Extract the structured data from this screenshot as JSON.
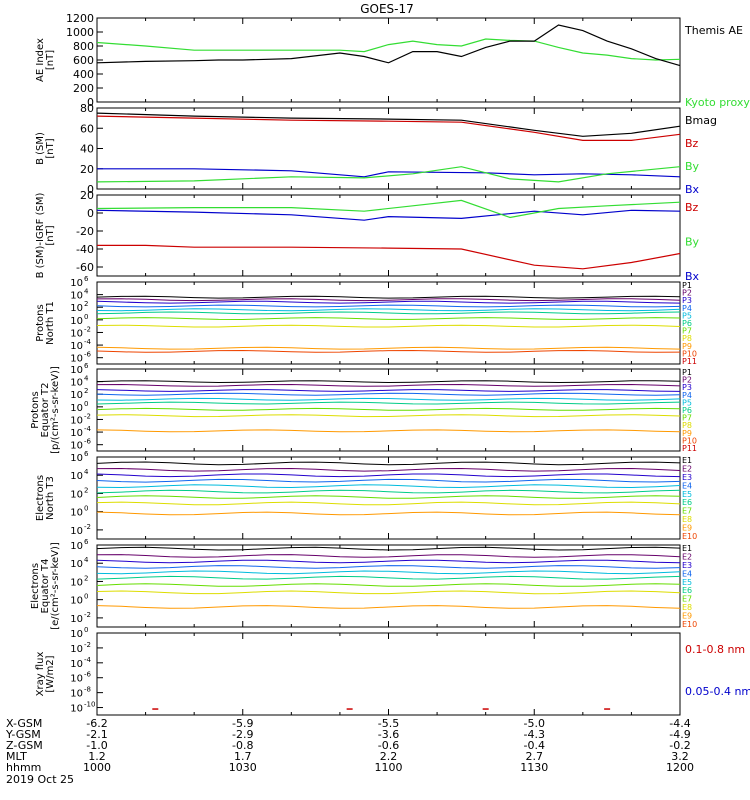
{
  "title": "GOES-17",
  "colors": {
    "black": "#000000",
    "green": "#33dd33",
    "blue": "#0000cc",
    "red": "#cc0000",
    "p": [
      "#000000",
      "#66006a",
      "#2200cc",
      "#1166ee",
      "#00bbdd",
      "#00cc88",
      "#66dd00",
      "#dddd00",
      "#ff9900",
      "#ee4400",
      "#cc0000"
    ]
  },
  "x_axis": {
    "rows": [
      {
        "label": "X-GSM",
        "values": [
          "-6.2",
          "-5.9",
          "-5.5",
          "-5.0",
          "-4.4"
        ]
      },
      {
        "label": "Y-GSM",
        "values": [
          "-2.1",
          "-2.9",
          "-3.6",
          "-4.3",
          "-4.9"
        ]
      },
      {
        "label": "Z-GSM",
        "values": [
          "-1.0",
          "-0.8",
          "-0.6",
          "-0.4",
          "-0.2"
        ]
      },
      {
        "label": "MLT",
        "values": [
          "1.2",
          "1.7",
          "2.2",
          "2.7",
          "3.2"
        ]
      },
      {
        "label": "hhmm",
        "values": [
          "1000",
          "1030",
          "1100",
          "1130",
          "1200"
        ]
      }
    ],
    "date": "2019 Oct 25",
    "range_minutes": [
      0,
      120
    ]
  },
  "chart_data": [
    {
      "type": "line",
      "ylabel": [
        "AE Index",
        "[nT]"
      ],
      "ylim": [
        0,
        1200
      ],
      "yticks": [
        "0",
        "200",
        "400",
        "600",
        "800",
        "1000",
        "1200"
      ],
      "series": [
        {
          "name": "Kyoto proxy AE",
          "color": "green",
          "x": [
            0,
            10,
            20,
            30,
            40,
            50,
            55,
            60,
            65,
            70,
            75,
            80,
            85,
            90,
            95,
            100,
            105,
            110,
            115,
            120
          ],
          "y": [
            850,
            800,
            740,
            740,
            740,
            740,
            720,
            820,
            870,
            820,
            800,
            900,
            880,
            870,
            780,
            700,
            670,
            620,
            600,
            610
          ]
        },
        {
          "name": "Themis AE",
          "color": "black",
          "x": [
            0,
            10,
            20,
            25,
            30,
            40,
            50,
            55,
            60,
            65,
            70,
            75,
            80,
            85,
            90,
            95,
            100,
            105,
            110,
            115,
            120
          ],
          "y": [
            560,
            580,
            590,
            600,
            600,
            620,
            700,
            650,
            560,
            720,
            720,
            650,
            780,
            870,
            870,
            1100,
            1020,
            870,
            760,
            620,
            520
          ]
        }
      ]
    },
    {
      "type": "line",
      "ylabel": [
        "B (SM)",
        "[nT]"
      ],
      "ylim": [
        0,
        80
      ],
      "yticks": [
        "0",
        "20",
        "40",
        "60",
        "80"
      ],
      "series": [
        {
          "name": "Bx",
          "color": "blue",
          "x": [
            0,
            20,
            40,
            55,
            60,
            80,
            90,
            100,
            110,
            120
          ],
          "y": [
            20,
            20,
            18,
            12,
            17,
            16,
            14,
            15,
            14,
            12
          ]
        },
        {
          "name": "By",
          "color": "green",
          "x": [
            0,
            20,
            40,
            55,
            65,
            75,
            85,
            95,
            105,
            120
          ],
          "y": [
            7,
            8,
            12,
            11,
            15,
            22,
            10,
            7,
            15,
            22
          ]
        },
        {
          "name": "Bz",
          "color": "red",
          "x": [
            0,
            20,
            40,
            60,
            75,
            90,
            100,
            110,
            120
          ],
          "y": [
            72,
            70,
            68,
            67,
            66,
            56,
            48,
            48,
            54
          ]
        },
        {
          "name": "Bmag",
          "color": "black",
          "x": [
            0,
            20,
            40,
            60,
            75,
            90,
            100,
            110,
            120
          ],
          "y": [
            75,
            72,
            70,
            69,
            68,
            58,
            52,
            55,
            62
          ]
        }
      ]
    },
    {
      "type": "line",
      "ylabel": [
        "B (SM)-IGRF (SM)",
        "[nT]"
      ],
      "ylim": [
        -70,
        20
      ],
      "yticks": [
        "-60",
        "-40",
        "-20",
        "0",
        "20"
      ],
      "series": [
        {
          "name": "Bx",
          "color": "blue",
          "x": [
            0,
            20,
            40,
            55,
            60,
            75,
            90,
            100,
            110,
            120
          ],
          "y": [
            3,
            1,
            -2,
            -8,
            -4,
            -6,
            2,
            -2,
            3,
            2
          ]
        },
        {
          "name": "By",
          "color": "green",
          "x": [
            0,
            20,
            40,
            55,
            65,
            75,
            85,
            95,
            105,
            120
          ],
          "y": [
            5,
            6,
            6,
            2,
            8,
            14,
            -5,
            5,
            8,
            12
          ]
        },
        {
          "name": "Bz",
          "color": "red",
          "x": [
            0,
            10,
            20,
            40,
            60,
            75,
            90,
            100,
            110,
            120
          ],
          "y": [
            -36,
            -36,
            -38,
            -38,
            -39,
            -40,
            -58,
            -62,
            -55,
            -45
          ]
        }
      ]
    },
    {
      "type": "line",
      "ylabel": [
        "Protons",
        "North T1"
      ],
      "log": true,
      "ylim_exp": [
        -7,
        6
      ],
      "ytick_exps": [
        -6,
        -4,
        -2,
        0,
        2,
        4,
        6
      ],
      "legend": [
        "P1",
        "P2",
        "P3",
        "P4",
        "P5",
        "P6",
        "P7",
        "P8",
        "P9",
        "P10",
        "P11"
      ],
      "series_exp": [
        {
          "name": "P1",
          "level": 3.6
        },
        {
          "name": "P2",
          "level": 3.2
        },
        {
          "name": "P3",
          "level": 2.8
        },
        {
          "name": "P4",
          "level": 2.2
        },
        {
          "name": "P5",
          "level": 1.6
        },
        {
          "name": "P6",
          "level": 1.1
        },
        {
          "name": "P7",
          "level": 0.2
        },
        {
          "name": "P8",
          "level": -1.0
        },
        {
          "name": "P9",
          "level": -4.5
        },
        {
          "name": "P10",
          "level": -5.0
        }
      ]
    },
    {
      "type": "line",
      "ylabel": [
        "Protons",
        "Equator T2",
        "[p/(cm²-s-sr-keV)]"
      ],
      "log": true,
      "ylim_exp": [
        -7,
        6
      ],
      "ytick_exps": [
        -6,
        -4,
        -2,
        0,
        2,
        4,
        6
      ],
      "legend": [
        "P1",
        "P2",
        "P3",
        "P4",
        "P5",
        "P6",
        "P7",
        "P8",
        "P9",
        "P10",
        "P11"
      ],
      "series_exp": [
        {
          "name": "P1",
          "level": 4.0
        },
        {
          "name": "P2",
          "level": 3.4
        },
        {
          "name": "P3",
          "level": 2.6
        },
        {
          "name": "P4",
          "level": 2.0
        },
        {
          "name": "P5",
          "level": 1.2
        },
        {
          "name": "P6",
          "level": 0.6
        },
        {
          "name": "P7",
          "level": -0.4
        },
        {
          "name": "P8",
          "level": -1.4
        },
        {
          "name": "P9",
          "level": -3.8
        }
      ]
    },
    {
      "type": "line",
      "ylabel": [
        "Electrons",
        "North T3"
      ],
      "log": true,
      "ylim_exp": [
        -3,
        6
      ],
      "ytick_exps": [
        -2,
        0,
        2,
        4,
        6
      ],
      "legend": [
        "E1",
        "E2",
        "E3",
        "E4",
        "E5",
        "E6",
        "E7",
        "E8",
        "E9",
        "E10"
      ],
      "series_exp": [
        {
          "name": "E1",
          "level": 5.3
        },
        {
          "name": "E2",
          "level": 4.6
        },
        {
          "name": "E3",
          "level": 4.0
        },
        {
          "name": "E4",
          "level": 3.4
        },
        {
          "name": "E5",
          "level": 2.8
        },
        {
          "name": "E6",
          "level": 2.2
        },
        {
          "name": "E7",
          "level": 1.6
        },
        {
          "name": "E8",
          "level": 0.9
        },
        {
          "name": "E9",
          "level": -0.2
        }
      ]
    },
    {
      "type": "line",
      "ylabel": [
        "Electrons",
        "Equator T4",
        "[e/(cm²-s-sr-keV)]"
      ],
      "log": true,
      "ylim_exp": [
        -3,
        6
      ],
      "ytick_exps": [
        -2,
        0,
        2,
        4,
        6
      ],
      "legend": [
        "E1",
        "E2",
        "E3",
        "E4",
        "E5",
        "E6",
        "E7",
        "E8",
        "E9",
        "E10"
      ],
      "series_exp": [
        {
          "name": "E1",
          "level": 5.6
        },
        {
          "name": "E2",
          "level": 4.8
        },
        {
          "name": "E3",
          "level": 4.2
        },
        {
          "name": "E4",
          "level": 3.6
        },
        {
          "name": "E5",
          "level": 3.0
        },
        {
          "name": "E6",
          "level": 2.4
        },
        {
          "name": "E7",
          "level": 1.6
        },
        {
          "name": "E8",
          "level": 0.8
        },
        {
          "name": "E9",
          "level": -0.8
        }
      ]
    },
    {
      "type": "scatter",
      "ylabel": [
        "Xray flux",
        "[W/m2]"
      ],
      "log": true,
      "ylim_exp": [
        -11,
        0
      ],
      "ytick_exps": [
        -10,
        -8,
        -6,
        -4,
        -2,
        0
      ],
      "legend_right": [
        {
          "text": "0.1-0.8 nm",
          "color": "red"
        },
        {
          "text": "0.05-0.4 nm",
          "color": "blue"
        }
      ],
      "marks": [
        {
          "x": 12,
          "exp": -10.2
        },
        {
          "x": 52,
          "exp": -10.2
        },
        {
          "x": 80,
          "exp": -10.2
        },
        {
          "x": 105,
          "exp": -10.2
        }
      ]
    }
  ]
}
